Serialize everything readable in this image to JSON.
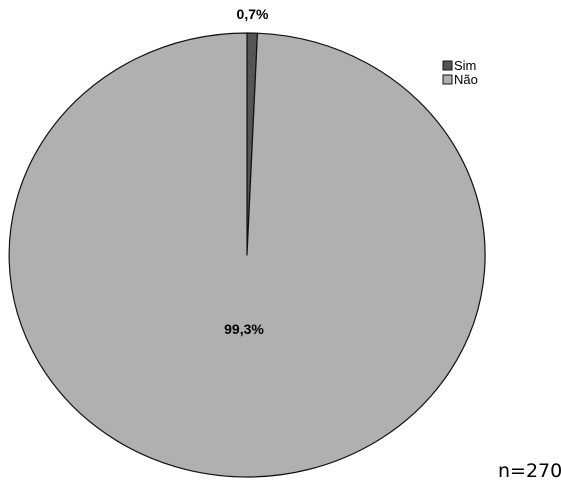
{
  "chart_data": {
    "type": "pie",
    "title": "",
    "slices": [
      {
        "label": "Sim",
        "value": 0.7,
        "display": "0,7%",
        "color": "#555555"
      },
      {
        "label": "Não",
        "value": 99.3,
        "display": "99,3%",
        "color": "#b0b0b0"
      }
    ],
    "start": "top",
    "direction": "clockwise",
    "legend_position": "top-right",
    "note": "n=270"
  }
}
